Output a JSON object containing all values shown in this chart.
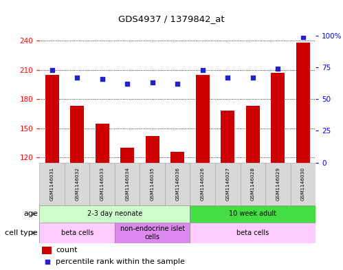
{
  "title": "GDS4937 / 1379842_at",
  "samples": [
    "GSM1146031",
    "GSM1146032",
    "GSM1146033",
    "GSM1146034",
    "GSM1146035",
    "GSM1146036",
    "GSM1146026",
    "GSM1146027",
    "GSM1146028",
    "GSM1146029",
    "GSM1146030"
  ],
  "counts": [
    205,
    173,
    155,
    130,
    142,
    126,
    205,
    168,
    173,
    207,
    238
  ],
  "percentiles": [
    73,
    67,
    66,
    62,
    63,
    62,
    73,
    67,
    67,
    74,
    99
  ],
  "ylim_left": [
    115,
    245
  ],
  "ylim_right": [
    0,
    100
  ],
  "yticks_left": [
    120,
    150,
    180,
    210,
    240
  ],
  "yticks_right": [
    0,
    25,
    50,
    75,
    100
  ],
  "ytick_labels_right": [
    "0",
    "25",
    "50",
    "75",
    "100%"
  ],
  "bar_color": "#cc0000",
  "dot_color": "#2222cc",
  "grid_color": "#000000",
  "age_groups": [
    {
      "label": "2-3 day neonate",
      "start": 0,
      "end": 6,
      "color": "#ccffcc"
    },
    {
      "label": "10 week adult",
      "start": 6,
      "end": 11,
      "color": "#44dd44"
    }
  ],
  "cell_type_groups": [
    {
      "label": "beta cells",
      "start": 0,
      "end": 3,
      "color": "#ffccff"
    },
    {
      "label": "non-endocrine islet\ncells",
      "start": 3,
      "end": 6,
      "color": "#dd88ee"
    },
    {
      "label": "beta cells",
      "start": 6,
      "end": 11,
      "color": "#ffccff"
    }
  ],
  "legend_count_label": "count",
  "legend_percentile_label": "percentile rank within the sample",
  "age_row_label": "age",
  "cell_type_row_label": "cell type",
  "sample_bg_color": "#d8d8d8",
  "sample_border_color": "#aaaaaa"
}
